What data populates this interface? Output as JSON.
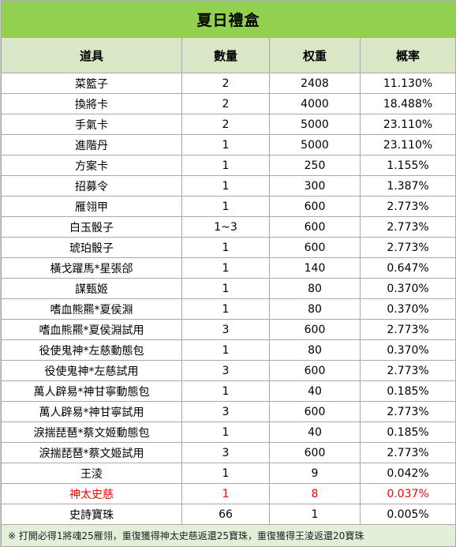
{
  "title": "夏日禮盒",
  "headers": [
    "道具",
    "數量",
    "权重",
    "概率"
  ],
  "rows": [
    {
      "item": "菜籃子",
      "qty": "2",
      "weight": "2408",
      "prob": "11.130%",
      "highlight": false
    },
    {
      "item": "換將卡",
      "qty": "2",
      "weight": "4000",
      "prob": "18.488%",
      "highlight": false
    },
    {
      "item": "手氣卡",
      "qty": "2",
      "weight": "5000",
      "prob": "23.110%",
      "highlight": false
    },
    {
      "item": "進階丹",
      "qty": "1",
      "weight": "5000",
      "prob": "23.110%",
      "highlight": false
    },
    {
      "item": "方案卡",
      "qty": "1",
      "weight": "250",
      "prob": "1.155%",
      "highlight": false
    },
    {
      "item": "招募令",
      "qty": "1",
      "weight": "300",
      "prob": "1.387%",
      "highlight": false
    },
    {
      "item": "雁翎甲",
      "qty": "1",
      "weight": "600",
      "prob": "2.773%",
      "highlight": false
    },
    {
      "item": "白玉骰子",
      "qty": "1~3",
      "weight": "600",
      "prob": "2.773%",
      "highlight": false
    },
    {
      "item": "琥珀骰子",
      "qty": "1",
      "weight": "600",
      "prob": "2.773%",
      "highlight": false
    },
    {
      "item": "橫戈躍馬*星張郃",
      "qty": "1",
      "weight": "140",
      "prob": "0.647%",
      "highlight": false
    },
    {
      "item": "謀甄姬",
      "qty": "1",
      "weight": "80",
      "prob": "0.370%",
      "highlight": false
    },
    {
      "item": "嗜血熊羆*夏侯淵",
      "qty": "1",
      "weight": "80",
      "prob": "0.370%",
      "highlight": false
    },
    {
      "item": "嗜血熊羆*夏侯淵試用",
      "qty": "3",
      "weight": "600",
      "prob": "2.773%",
      "highlight": false
    },
    {
      "item": "役使鬼神*左慈動態包",
      "qty": "1",
      "weight": "80",
      "prob": "0.370%",
      "highlight": false
    },
    {
      "item": "役使鬼神*左慈試用",
      "qty": "3",
      "weight": "600",
      "prob": "2.773%",
      "highlight": false
    },
    {
      "item": "萬人辟易*神甘寧動態包",
      "qty": "1",
      "weight": "40",
      "prob": "0.185%",
      "highlight": false
    },
    {
      "item": "萬人辟易*神甘寧試用",
      "qty": "3",
      "weight": "600",
      "prob": "2.773%",
      "highlight": false
    },
    {
      "item": "淚揣琵琶*蔡文姬動態包",
      "qty": "1",
      "weight": "40",
      "prob": "0.185%",
      "highlight": false
    },
    {
      "item": "淚揣琵琶*蔡文姬試用",
      "qty": "3",
      "weight": "600",
      "prob": "2.773%",
      "highlight": false
    },
    {
      "item": "王淩",
      "qty": "1",
      "weight": "9",
      "prob": "0.042%",
      "highlight": false
    },
    {
      "item": "神太史慈",
      "qty": "1",
      "weight": "8",
      "prob": "0.037%",
      "highlight": true
    },
    {
      "item": "史詩寶珠",
      "qty": "66",
      "weight": "1",
      "prob": "0.005%",
      "highlight": false
    }
  ],
  "footer": "※ 打開必得1將魂25雁翎，重復獲得神太史慈返還25寶珠，重復獲得王淩返還20寶珠",
  "colors": {
    "title_bg": "#92d050",
    "header_bg": "#d9e7c6",
    "highlight": "#ff0000",
    "footer_bg": "#e2efd9"
  }
}
